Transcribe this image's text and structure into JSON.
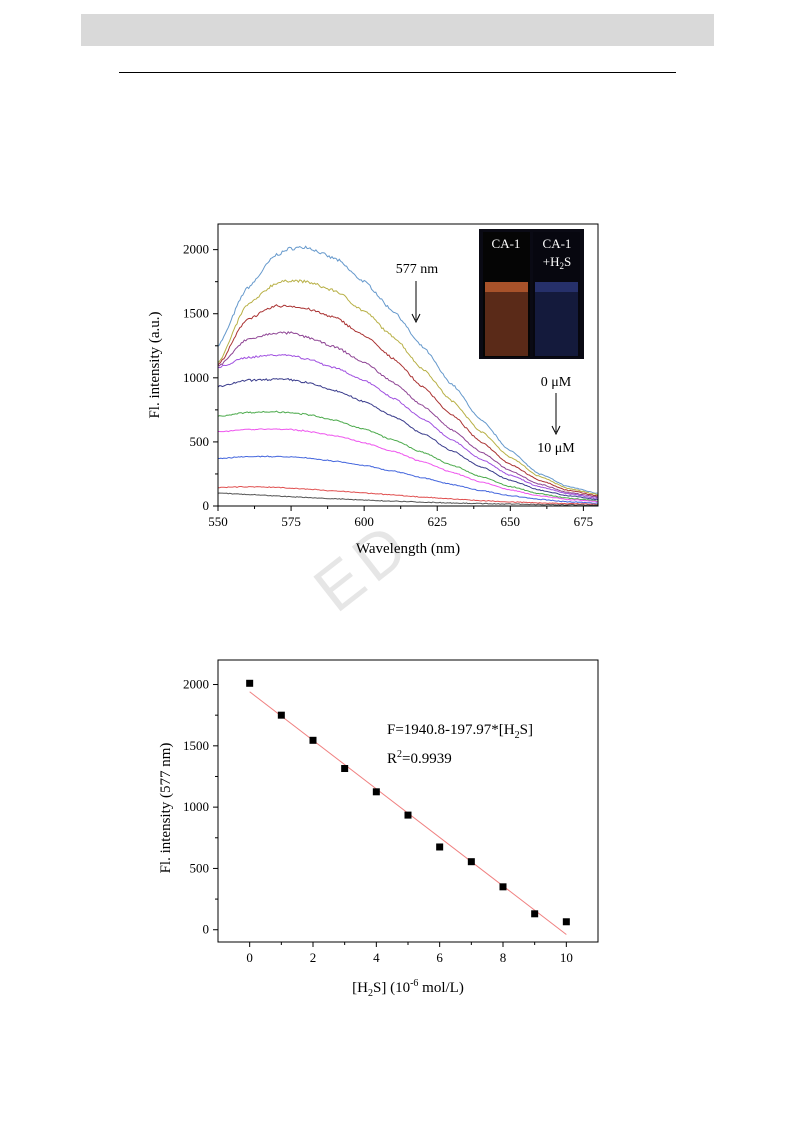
{
  "page": {
    "watermark": "ED"
  },
  "chart_data": [
    {
      "type": "line",
      "xlabel": "Wavelength (nm)",
      "ylabel": "Fl. intensity (a.u.)",
      "xlim": [
        550,
        680
      ],
      "ylim": [
        0,
        2200
      ],
      "xticks": [
        550,
        575,
        600,
        625,
        650,
        675
      ],
      "yticks": [
        0,
        500,
        1000,
        1500,
        2000
      ],
      "grid": false,
      "legend": "none",
      "peak_annotation": "577 nm",
      "range_start_label": "0 μM",
      "range_end_label": "10 μM",
      "inset_labels": {
        "left": "CA-1",
        "right_line1": "CA-1",
        "right_line2_prefix": "+H",
        "right_line2_sub": "2",
        "right_line2_suffix": "S"
      },
      "series": [
        {
          "color": "#6699cc",
          "values": [
            [
              550,
              1250
            ],
            [
              560,
              1700
            ],
            [
              570,
              1960
            ],
            [
              575,
              2010
            ],
            [
              580,
              2020
            ],
            [
              590,
              1930
            ],
            [
              600,
              1750
            ],
            [
              610,
              1520
            ],
            [
              620,
              1240
            ],
            [
              630,
              950
            ],
            [
              640,
              670
            ],
            [
              650,
              430
            ],
            [
              660,
              250
            ],
            [
              670,
              150
            ],
            [
              680,
              100
            ]
          ]
        },
        {
          "color": "#b8b046",
          "values": [
            [
              550,
              1120
            ],
            [
              560,
              1570
            ],
            [
              570,
              1740
            ],
            [
              575,
              1760
            ],
            [
              580,
              1750
            ],
            [
              590,
              1680
            ],
            [
              600,
              1520
            ],
            [
              610,
              1320
            ],
            [
              620,
              1070
            ],
            [
              630,
              820
            ],
            [
              640,
              580
            ],
            [
              650,
              380
            ],
            [
              660,
              230
            ],
            [
              670,
              135
            ],
            [
              680,
              90
            ]
          ]
        },
        {
          "color": "#aa3333",
          "values": [
            [
              550,
              1100
            ],
            [
              560,
              1460
            ],
            [
              570,
              1560
            ],
            [
              575,
              1560
            ],
            [
              580,
              1540
            ],
            [
              590,
              1470
            ],
            [
              600,
              1330
            ],
            [
              610,
              1150
            ],
            [
              620,
              930
            ],
            [
              630,
              710
            ],
            [
              640,
              500
            ],
            [
              650,
              325
            ],
            [
              660,
              200
            ],
            [
              670,
              120
            ],
            [
              680,
              80
            ]
          ]
        },
        {
          "color": "#8e4494",
          "values": [
            [
              550,
              1090
            ],
            [
              560,
              1300
            ],
            [
              570,
              1350
            ],
            [
              575,
              1350
            ],
            [
              580,
              1320
            ],
            [
              590,
              1240
            ],
            [
              600,
              1120
            ],
            [
              610,
              965
            ],
            [
              620,
              780
            ],
            [
              630,
              595
            ],
            [
              640,
              420
            ],
            [
              650,
              275
            ],
            [
              660,
              170
            ],
            [
              670,
              105
            ],
            [
              680,
              70
            ]
          ]
        },
        {
          "color": "#a050e0",
          "values": [
            [
              550,
              1080
            ],
            [
              560,
              1160
            ],
            [
              570,
              1180
            ],
            [
              575,
              1175
            ],
            [
              580,
              1150
            ],
            [
              590,
              1080
            ],
            [
              600,
              980
            ],
            [
              610,
              840
            ],
            [
              620,
              680
            ],
            [
              630,
              515
            ],
            [
              640,
              365
            ],
            [
              650,
              240
            ],
            [
              660,
              150
            ],
            [
              670,
              95
            ],
            [
              680,
              60
            ]
          ]
        },
        {
          "color": "#3a3c8c",
          "values": [
            [
              550,
              930
            ],
            [
              560,
              980
            ],
            [
              570,
              990
            ],
            [
              575,
              985
            ],
            [
              580,
              965
            ],
            [
              590,
              900
            ],
            [
              600,
              815
            ],
            [
              610,
              700
            ],
            [
              620,
              565
            ],
            [
              630,
              430
            ],
            [
              640,
              305
            ],
            [
              650,
              200
            ],
            [
              660,
              125
            ],
            [
              670,
              80
            ],
            [
              680,
              50
            ]
          ]
        },
        {
          "color": "#4caa4c",
          "values": [
            [
              550,
              700
            ],
            [
              560,
              730
            ],
            [
              570,
              735
            ],
            [
              575,
              730
            ],
            [
              580,
              715
            ],
            [
              590,
              668
            ],
            [
              600,
              600
            ],
            [
              610,
              515
            ],
            [
              620,
              418
            ],
            [
              630,
              318
            ],
            [
              640,
              228
            ],
            [
              650,
              152
            ],
            [
              660,
              96
            ],
            [
              670,
              60
            ],
            [
              680,
              40
            ]
          ]
        },
        {
          "color": "#ee55ee",
          "values": [
            [
              550,
              580
            ],
            [
              560,
              598
            ],
            [
              570,
              600
            ],
            [
              575,
              596
            ],
            [
              580,
              585
            ],
            [
              590,
              548
            ],
            [
              600,
              495
            ],
            [
              610,
              425
            ],
            [
              620,
              345
            ],
            [
              630,
              262
            ],
            [
              640,
              188
            ],
            [
              650,
              125
            ],
            [
              660,
              80
            ],
            [
              670,
              50
            ],
            [
              680,
              34
            ]
          ]
        },
        {
          "color": "#4466dd",
          "values": [
            [
              550,
              370
            ],
            [
              560,
              385
            ],
            [
              570,
              386
            ],
            [
              575,
              382
            ],
            [
              580,
              375
            ],
            [
              590,
              350
            ],
            [
              600,
              316
            ],
            [
              610,
              272
            ],
            [
              620,
              220
            ],
            [
              630,
              168
            ],
            [
              640,
              120
            ],
            [
              650,
              80
            ],
            [
              660,
              52
            ],
            [
              670,
              33
            ],
            [
              680,
              22
            ]
          ]
        },
        {
          "color": "#e05050",
          "values": [
            [
              550,
              145
            ],
            [
              560,
              150
            ],
            [
              570,
              146
            ],
            [
              575,
              140
            ],
            [
              580,
              132
            ],
            [
              590,
              118
            ],
            [
              600,
              102
            ],
            [
              610,
              86
            ],
            [
              620,
              70
            ],
            [
              630,
              55
            ],
            [
              640,
              42
            ],
            [
              650,
              32
            ],
            [
              660,
              24
            ],
            [
              670,
              18
            ],
            [
              680,
              14
            ]
          ]
        },
        {
          "color": "#555555",
          "values": [
            [
              550,
              100
            ],
            [
              560,
              90
            ],
            [
              570,
              78
            ],
            [
              575,
              72
            ],
            [
              580,
              66
            ],
            [
              590,
              56
            ],
            [
              600,
              46
            ],
            [
              610,
              38
            ],
            [
              620,
              30
            ],
            [
              630,
              24
            ],
            [
              640,
              19
            ],
            [
              650,
              15
            ],
            [
              660,
              12
            ],
            [
              670,
              9
            ],
            [
              680,
              7
            ]
          ]
        }
      ]
    },
    {
      "type": "scatter",
      "xlabel_prefix": "[H",
      "xlabel_sub": "2",
      "xlabel_mid": "S] (10",
      "xlabel_sup": "-6",
      "xlabel_suffix": " mol/L)",
      "ylabel": "Fl. intensity (577 nm)",
      "xlim": [
        -1,
        11
      ],
      "ylim": [
        -100,
        2200
      ],
      "xticks": [
        0,
        2,
        4,
        6,
        8,
        10
      ],
      "yticks": [
        0,
        500,
        1000,
        1500,
        2000
      ],
      "grid": false,
      "equation_prefix": "F=1940.8-197.97*[H",
      "equation_sub": "2",
      "equation_suffix": "S]",
      "r2_prefix": "R",
      "r2_sup": "2",
      "r2_suffix": "=0.9939",
      "fit": {
        "intercept": 1940.8,
        "slope": -197.97,
        "x_range": [
          0,
          10
        ],
        "color": "#f08080"
      },
      "points": {
        "color": "#000000",
        "x": [
          0,
          1,
          2,
          3,
          4,
          5,
          6,
          7,
          8,
          9,
          10
        ],
        "y": [
          2010,
          1750,
          1545,
          1315,
          1125,
          935,
          675,
          555,
          350,
          130,
          65
        ]
      }
    }
  ]
}
